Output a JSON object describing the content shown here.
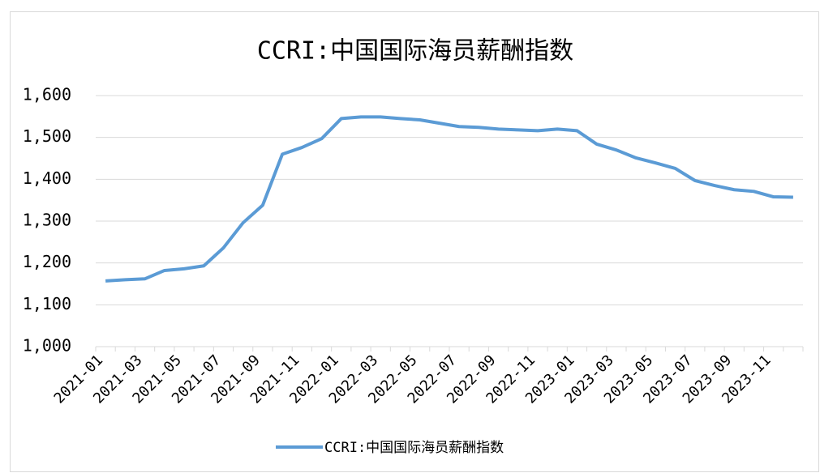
{
  "chart_data": {
    "type": "line",
    "title": "CCRI:中国国际海员薪酬指数",
    "categories": [
      "2021-01",
      null,
      "2021-03",
      null,
      "2021-05",
      null,
      "2021-07",
      null,
      "2021-09",
      null,
      "2021-11",
      null,
      "2022-01",
      null,
      "2022-03",
      null,
      "2022-05",
      null,
      "2022-07",
      null,
      "2022-09",
      null,
      "2022-11",
      null,
      "2023-01",
      null,
      "2023-03",
      null,
      "2023-05",
      null,
      "2023-07",
      null,
      "2023-09",
      null,
      "2023-11",
      null
    ],
    "series": [
      {
        "name": "CCRI:中国国际海员薪酬指数",
        "color": "#5b9bd5",
        "values": [
          1157,
          1160,
          1162,
          1182,
          1186,
          1193,
          1236,
          1296,
          1338,
          1460,
          1476,
          1497,
          1545,
          1549,
          1549,
          1545,
          1542,
          1534,
          1526,
          1524,
          1520,
          1518,
          1516,
          1520,
          1516,
          1484,
          1470,
          1451,
          1439,
          1426,
          1397,
          1385,
          1375,
          1371,
          1358,
          1357
        ]
      }
    ],
    "ylim": [
      1000,
      1600
    ],
    "yticks": [
      {
        "value": 1000,
        "label": "1,000"
      },
      {
        "value": 1100,
        "label": "1,100"
      },
      {
        "value": 1200,
        "label": "1,200"
      },
      {
        "value": 1300,
        "label": "1,300"
      },
      {
        "value": 1400,
        "label": "1,400"
      },
      {
        "value": 1500,
        "label": "1,500"
      },
      {
        "value": 1600,
        "label": "1,600"
      }
    ],
    "grid": true,
    "legend": "bottom"
  }
}
